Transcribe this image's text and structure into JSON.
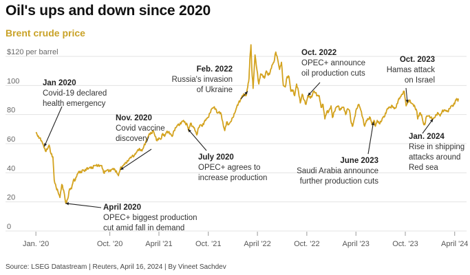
{
  "colors": {
    "series": "#d3a21e",
    "title": "#111111",
    "subtitle": "#c9a227",
    "grid": "#e3e3e3"
  },
  "chart_data": {
    "type": "line",
    "title": "Oil's ups and down since 2020",
    "subtitle": "Brent crude price",
    "source": "Source: LSEG Datastream | Reuters, April 16, 2024 | By Vineet Sachdev",
    "ylim": [
      0,
      120
    ],
    "yticks": [
      0,
      20,
      40,
      60,
      80,
      100
    ],
    "ytick_top_label": "$120 per barrel",
    "xlim": [
      "2019-12-01",
      "2024-05-15"
    ],
    "xticks": [
      {
        "date": "2020-01-01",
        "label": "Jan. '20"
      },
      {
        "date": "2020-10-01",
        "label": "Oct. '20"
      },
      {
        "date": "2021-04-01",
        "label": "April '21"
      },
      {
        "date": "2021-10-01",
        "label": "Oct. '21"
      },
      {
        "date": "2022-04-01",
        "label": "April '22"
      },
      {
        "date": "2022-10-01",
        "label": "Oct. '22"
      },
      {
        "date": "2023-04-01",
        "label": "April '23"
      },
      {
        "date": "2023-10-01",
        "label": "Oct. '23"
      },
      {
        "date": "2024-04-01",
        "label": "April '24"
      }
    ],
    "grid": true,
    "legend": "none",
    "series": [
      {
        "points": [
          [
            "2020-01-02",
            68
          ],
          [
            "2020-01-08",
            65
          ],
          [
            "2020-01-15",
            64
          ],
          [
            "2020-01-22",
            62
          ],
          [
            "2020-01-29",
            59
          ],
          [
            "2020-02-05",
            55
          ],
          [
            "2020-02-12",
            56
          ],
          [
            "2020-02-19",
            59
          ],
          [
            "2020-02-26",
            53
          ],
          [
            "2020-03-04",
            51
          ],
          [
            "2020-03-09",
            35
          ],
          [
            "2020-03-16",
            30
          ],
          [
            "2020-03-23",
            27
          ],
          [
            "2020-03-30",
            23
          ],
          [
            "2020-04-06",
            32
          ],
          [
            "2020-04-13",
            28
          ],
          [
            "2020-04-21",
            19
          ],
          [
            "2020-04-28",
            22
          ],
          [
            "2020-05-05",
            29
          ],
          [
            "2020-05-12",
            29
          ],
          [
            "2020-05-19",
            35
          ],
          [
            "2020-05-26",
            35
          ],
          [
            "2020-06-02",
            39
          ],
          [
            "2020-06-09",
            41
          ],
          [
            "2020-06-16",
            40
          ],
          [
            "2020-06-23",
            42
          ],
          [
            "2020-06-30",
            41
          ],
          [
            "2020-07-07",
            43
          ],
          [
            "2020-07-14",
            43
          ],
          [
            "2020-07-21",
            44
          ],
          [
            "2020-07-28",
            43
          ],
          [
            "2020-08-04",
            45
          ],
          [
            "2020-08-11",
            45
          ],
          [
            "2020-08-18",
            45
          ],
          [
            "2020-08-25",
            45
          ],
          [
            "2020-09-01",
            45
          ],
          [
            "2020-09-08",
            40
          ],
          [
            "2020-09-15",
            41
          ],
          [
            "2020-09-22",
            42
          ],
          [
            "2020-09-29",
            41
          ],
          [
            "2020-10-06",
            42
          ],
          [
            "2020-10-13",
            43
          ],
          [
            "2020-10-20",
            42
          ],
          [
            "2020-10-27",
            40
          ],
          [
            "2020-11-02",
            38
          ],
          [
            "2020-11-09",
            43
          ],
          [
            "2020-11-16",
            44
          ],
          [
            "2020-11-23",
            46
          ],
          [
            "2020-11-30",
            47
          ],
          [
            "2020-12-07",
            48
          ],
          [
            "2020-12-14",
            50
          ],
          [
            "2020-12-21",
            51
          ],
          [
            "2020-12-31",
            52
          ],
          [
            "2021-01-07",
            54
          ],
          [
            "2021-01-14",
            56
          ],
          [
            "2021-01-21",
            56
          ],
          [
            "2021-01-28",
            55
          ],
          [
            "2021-02-04",
            58
          ],
          [
            "2021-02-11",
            61
          ],
          [
            "2021-02-18",
            64
          ],
          [
            "2021-02-25",
            67
          ],
          [
            "2021-03-04",
            67
          ],
          [
            "2021-03-11",
            69
          ],
          [
            "2021-03-18",
            65
          ],
          [
            "2021-03-25",
            62
          ],
          [
            "2021-04-01",
            64
          ],
          [
            "2021-04-08",
            63
          ],
          [
            "2021-04-15",
            67
          ],
          [
            "2021-04-22",
            65
          ],
          [
            "2021-04-29",
            68
          ],
          [
            "2021-05-06",
            68
          ],
          [
            "2021-05-13",
            67
          ],
          [
            "2021-05-20",
            65
          ],
          [
            "2021-05-27",
            69
          ],
          [
            "2021-06-03",
            71
          ],
          [
            "2021-06-10",
            73
          ],
          [
            "2021-06-17",
            73
          ],
          [
            "2021-06-24",
            75
          ],
          [
            "2021-07-01",
            76
          ],
          [
            "2021-07-08",
            74
          ],
          [
            "2021-07-15",
            73
          ],
          [
            "2021-07-20",
            69
          ],
          [
            "2021-07-27",
            74
          ],
          [
            "2021-08-03",
            72
          ],
          [
            "2021-08-10",
            71
          ],
          [
            "2021-08-19",
            66
          ],
          [
            "2021-08-26",
            71
          ],
          [
            "2021-09-02",
            73
          ],
          [
            "2021-09-09",
            72
          ],
          [
            "2021-09-16",
            75
          ],
          [
            "2021-09-23",
            77
          ],
          [
            "2021-09-30",
            78
          ],
          [
            "2021-10-07",
            81
          ],
          [
            "2021-10-14",
            84
          ],
          [
            "2021-10-21",
            85
          ],
          [
            "2021-10-28",
            84
          ],
          [
            "2021-11-04",
            81
          ],
          [
            "2021-11-11",
            82
          ],
          [
            "2021-11-18",
            80
          ],
          [
            "2021-11-26",
            72
          ],
          [
            "2021-12-01",
            69
          ],
          [
            "2021-12-08",
            75
          ],
          [
            "2021-12-15",
            73
          ],
          [
            "2021-12-22",
            75
          ],
          [
            "2021-12-31",
            78
          ],
          [
            "2022-01-07",
            81
          ],
          [
            "2022-01-14",
            85
          ],
          [
            "2022-01-21",
            88
          ],
          [
            "2022-01-28",
            90
          ],
          [
            "2022-02-04",
            93
          ],
          [
            "2022-02-11",
            94
          ],
          [
            "2022-02-18",
            93
          ],
          [
            "2022-02-24",
            99
          ],
          [
            "2022-03-01",
            105
          ],
          [
            "2022-03-04",
            118
          ],
          [
            "2022-03-08",
            128
          ],
          [
            "2022-03-11",
            112
          ],
          [
            "2022-03-16",
            98
          ],
          [
            "2022-03-23",
            121
          ],
          [
            "2022-03-30",
            111
          ],
          [
            "2022-04-06",
            101
          ],
          [
            "2022-04-13",
            108
          ],
          [
            "2022-04-20",
            107
          ],
          [
            "2022-04-27",
            105
          ],
          [
            "2022-05-04",
            110
          ],
          [
            "2022-05-11",
            107
          ],
          [
            "2022-05-18",
            109
          ],
          [
            "2022-05-25",
            114
          ],
          [
            "2022-06-01",
            116
          ],
          [
            "2022-06-08",
            123
          ],
          [
            "2022-06-15",
            118
          ],
          [
            "2022-06-22",
            111
          ],
          [
            "2022-06-29",
            116
          ],
          [
            "2022-07-06",
            100
          ],
          [
            "2022-07-13",
            99
          ],
          [
            "2022-07-20",
            106
          ],
          [
            "2022-07-27",
            106
          ],
          [
            "2022-08-03",
            96
          ],
          [
            "2022-08-10",
            97
          ],
          [
            "2022-08-17",
            93
          ],
          [
            "2022-08-24",
            101
          ],
          [
            "2022-08-31",
            96
          ],
          [
            "2022-09-07",
            88
          ],
          [
            "2022-09-14",
            94
          ],
          [
            "2022-09-21",
            90
          ],
          [
            "2022-09-28",
            87
          ],
          [
            "2022-10-05",
            93
          ],
          [
            "2022-10-12",
            92
          ],
          [
            "2022-10-19",
            92
          ],
          [
            "2022-10-26",
            96
          ],
          [
            "2022-11-02",
            95
          ],
          [
            "2022-11-09",
            93
          ],
          [
            "2022-11-16",
            93
          ],
          [
            "2022-11-23",
            85
          ],
          [
            "2022-11-30",
            87
          ],
          [
            "2022-12-07",
            77
          ],
          [
            "2022-12-14",
            82
          ],
          [
            "2022-12-21",
            82
          ],
          [
            "2022-12-30",
            86
          ],
          [
            "2023-01-04",
            78
          ],
          [
            "2023-01-11",
            82
          ],
          [
            "2023-01-18",
            85
          ],
          [
            "2023-01-25",
            86
          ],
          [
            "2023-02-01",
            83
          ],
          [
            "2023-02-08",
            85
          ],
          [
            "2023-02-15",
            85
          ],
          [
            "2023-02-22",
            80
          ],
          [
            "2023-03-01",
            84
          ],
          [
            "2023-03-08",
            83
          ],
          [
            "2023-03-15",
            74
          ],
          [
            "2023-03-20",
            72
          ],
          [
            "2023-03-27",
            78
          ],
          [
            "2023-04-03",
            84
          ],
          [
            "2023-04-12",
            87
          ],
          [
            "2023-04-19",
            83
          ],
          [
            "2023-04-26",
            78
          ],
          [
            "2023-05-03",
            72
          ],
          [
            "2023-05-10",
            76
          ],
          [
            "2023-05-17",
            77
          ],
          [
            "2023-05-24",
            78
          ],
          [
            "2023-05-31",
            73
          ],
          [
            "2023-06-07",
            76
          ],
          [
            "2023-06-12",
            72
          ],
          [
            "2023-06-19",
            76
          ],
          [
            "2023-06-26",
            74
          ],
          [
            "2023-07-03",
            75
          ],
          [
            "2023-07-10",
            78
          ],
          [
            "2023-07-17",
            79
          ],
          [
            "2023-07-24",
            83
          ],
          [
            "2023-07-31",
            85
          ],
          [
            "2023-08-07",
            85
          ],
          [
            "2023-08-14",
            86
          ],
          [
            "2023-08-21",
            84
          ],
          [
            "2023-08-28",
            85
          ],
          [
            "2023-09-05",
            90
          ],
          [
            "2023-09-12",
            92
          ],
          [
            "2023-09-19",
            94
          ],
          [
            "2023-09-27",
            96
          ],
          [
            "2023-10-04",
            86
          ],
          [
            "2023-10-09",
            88
          ],
          [
            "2023-10-16",
            90
          ],
          [
            "2023-10-23",
            88
          ],
          [
            "2023-10-30",
            87
          ],
          [
            "2023-11-06",
            85
          ],
          [
            "2023-11-13",
            82
          ],
          [
            "2023-11-16",
            77
          ],
          [
            "2023-11-23",
            81
          ],
          [
            "2023-11-30",
            80
          ],
          [
            "2023-12-07",
            74
          ],
          [
            "2023-12-12",
            73
          ],
          [
            "2023-12-19",
            79
          ],
          [
            "2023-12-27",
            79
          ],
          [
            "2024-01-03",
            78
          ],
          [
            "2024-01-10",
            77
          ],
          [
            "2024-01-17",
            78
          ],
          [
            "2024-01-24",
            80
          ],
          [
            "2024-01-31",
            81
          ],
          [
            "2024-02-07",
            79
          ],
          [
            "2024-02-14",
            82
          ],
          [
            "2024-02-21",
            83
          ],
          [
            "2024-02-28",
            83
          ],
          [
            "2024-03-06",
            82
          ],
          [
            "2024-03-13",
            84
          ],
          [
            "2024-03-20",
            86
          ],
          [
            "2024-03-27",
            86
          ],
          [
            "2024-04-03",
            89
          ],
          [
            "2024-04-08",
            91
          ],
          [
            "2024-04-12",
            90
          ],
          [
            "2024-04-15",
            90
          ]
        ]
      }
    ],
    "annotations": [
      {
        "id": "jan2020",
        "title": "Jan 2020",
        "lines": [
          "Covid-19 declared",
          "health emergency"
        ],
        "date": "2020-02-01",
        "value": 58
      },
      {
        "id": "apr2020",
        "title": "April 2020",
        "lines": [
          "OPEC+ biggest production",
          "cut amid fall in demand"
        ],
        "date": "2020-04-20",
        "value": 19
      },
      {
        "id": "nov2020",
        "title": "Nov. 2020",
        "lines": [
          "Covid vaccine",
          "discovery"
        ],
        "date": "2020-11-09",
        "value": 42
      },
      {
        "id": "jul2020",
        "title": "July 2020",
        "lines": [
          "OPEC+ agrees to",
          "increase production"
        ],
        "date": "2021-07-18",
        "value": 70
      },
      {
        "id": "feb2022",
        "title": "Feb. 2022",
        "lines": [
          "Russia's  invasion",
          "of Ukraine"
        ],
        "date": "2022-02-24",
        "value": 96
      },
      {
        "id": "oct2022",
        "title": "Oct. 2022",
        "lines": [
          "OPEC+ announce",
          "oil production cuts"
        ],
        "date": "2022-10-05",
        "value": 93
      },
      {
        "id": "jun2023",
        "title": "June 2023",
        "lines": [
          "Saudi Arabia announce",
          "further production cuts"
        ],
        "date": "2023-06-05",
        "value": 75
      },
      {
        "id": "oct2023",
        "title": "Oct. 2023",
        "lines": [
          "Hamas attack",
          "on Israel"
        ],
        "date": "2023-10-09",
        "value": 88
      },
      {
        "id": "jan2024",
        "title": "Jan. 2024",
        "lines": [
          "Rise in shipping",
          "attacks around",
          "Red sea"
        ],
        "date": "2024-01-12",
        "value": 77
      }
    ]
  }
}
